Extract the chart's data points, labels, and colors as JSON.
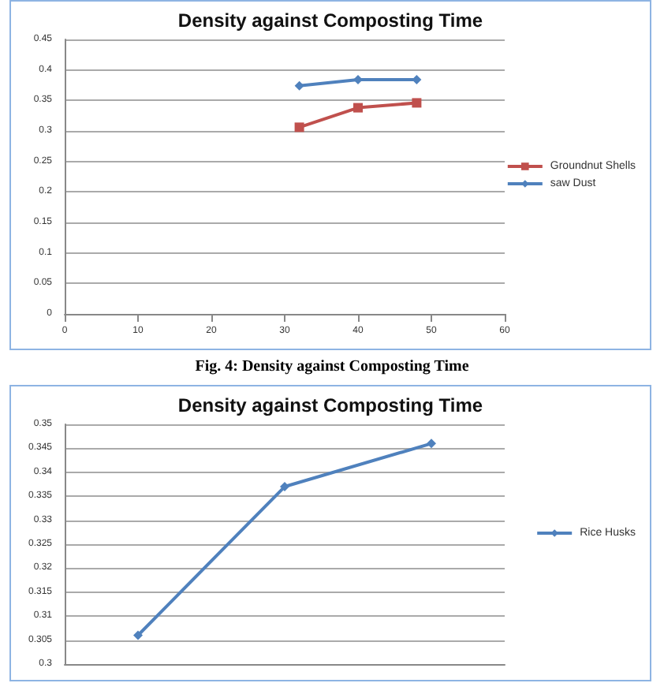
{
  "chart_data": [
    {
      "type": "line",
      "title": "Density against Composting Time",
      "annotations": [
        "Fig. 4: Density against Composting Time"
      ],
      "x": [
        32,
        40,
        48
      ],
      "series": [
        {
          "name": "Groundnut Shells",
          "color": "#c0504d",
          "marker": "square",
          "values": [
            0.306,
            0.338,
            0.346
          ]
        },
        {
          "name": "saw Dust",
          "color": "#4f81bd",
          "marker": "diamond",
          "values": [
            0.374,
            0.384,
            0.384
          ]
        }
      ],
      "xlim": [
        0,
        60
      ],
      "xticks": [
        0,
        10,
        20,
        30,
        40,
        50,
        60
      ],
      "ylim": [
        0,
        0.45
      ],
      "yticks": [
        0,
        0.05,
        0.1,
        0.15,
        0.2,
        0.25,
        0.3,
        0.35,
        0.4,
        0.45
      ],
      "grid": "y",
      "legend": "right"
    },
    {
      "type": "line",
      "title": "Density against Composting Time",
      "categories": [
        null,
        null,
        null
      ],
      "series": [
        {
          "name": "Rice Husks",
          "color": "#4f81bd",
          "marker": "diamond",
          "values": [
            0.306,
            0.337,
            0.346
          ]
        }
      ],
      "ylim": [
        0.3,
        0.35
      ],
      "yticks": [
        0.3,
        0.305,
        0.31,
        0.315,
        0.32,
        0.325,
        0.33,
        0.335,
        0.34,
        0.345,
        0.35
      ],
      "grid": "y",
      "legend": "right",
      "tick_labels": "y"
    }
  ]
}
